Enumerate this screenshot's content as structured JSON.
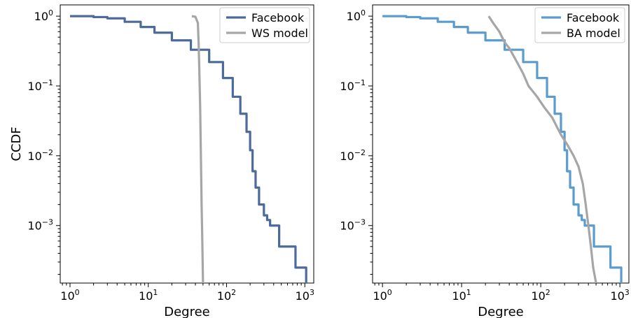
{
  "chart_data": [
    {
      "type": "line",
      "xscale": "log",
      "yscale": "log",
      "xlabel": "Degree",
      "ylabel": "CCDF",
      "xlim": [
        0.75,
        1300
      ],
      "ylim": [
        0.00015,
        1.45
      ],
      "xticks": [
        {
          "base": "10",
          "exp": "0",
          "value": 1
        },
        {
          "base": "10",
          "exp": "1",
          "value": 10
        },
        {
          "base": "10",
          "exp": "2",
          "value": 100
        },
        {
          "base": "10",
          "exp": "3",
          "value": 1000
        }
      ],
      "yticks": [
        {
          "base": "10",
          "exp": "0",
          "value": 1
        },
        {
          "base": "10",
          "exp": "−1",
          "value": 0.1
        },
        {
          "base": "10",
          "exp": "−2",
          "value": 0.01
        },
        {
          "base": "10",
          "exp": "−3",
          "value": 0.001
        }
      ],
      "legend_position": "top-right",
      "grid": false,
      "series": [
        {
          "name": "Facebook",
          "color": "#4c6a9b",
          "step": true,
          "points": [
            [
              1,
              1.0
            ],
            [
              2,
              0.97
            ],
            [
              3,
              0.93
            ],
            [
              5,
              0.83
            ],
            [
              8,
              0.7
            ],
            [
              12,
              0.58
            ],
            [
              20,
              0.45
            ],
            [
              35,
              0.33
            ],
            [
              60,
              0.22
            ],
            [
              90,
              0.13
            ],
            [
              120,
              0.07
            ],
            [
              150,
              0.04
            ],
            [
              180,
              0.022
            ],
            [
              200,
              0.012
            ],
            [
              215,
              0.006
            ],
            [
              235,
              0.0035
            ],
            [
              260,
              0.002
            ],
            [
              300,
              0.0014
            ],
            [
              330,
              0.0012
            ],
            [
              360,
              0.001
            ],
            [
              460,
              0.001
            ],
            [
              470,
              0.0005
            ],
            [
              740,
              0.0005
            ],
            [
              760,
              0.00025
            ],
            [
              1040,
              0.00025
            ],
            [
              1040,
              0.00015
            ]
          ]
        },
        {
          "name": "WS model",
          "color": "#a6a6a6",
          "step": false,
          "points": [
            [
              36,
              1.0
            ],
            [
              40,
              0.98
            ],
            [
              43,
              0.8
            ],
            [
              44,
              0.4
            ],
            [
              45,
              0.15
            ],
            [
              46,
              0.05
            ],
            [
              47,
              0.01
            ],
            [
              48,
              0.002
            ],
            [
              49,
              0.0006
            ],
            [
              50,
              0.00015
            ]
          ]
        }
      ]
    },
    {
      "type": "line",
      "xscale": "log",
      "yscale": "log",
      "xlabel": "Degree",
      "ylabel": "",
      "xlim": [
        0.75,
        1300
      ],
      "ylim": [
        0.00015,
        1.45
      ],
      "xticks": [
        {
          "base": "10",
          "exp": "0",
          "value": 1
        },
        {
          "base": "10",
          "exp": "1",
          "value": 10
        },
        {
          "base": "10",
          "exp": "2",
          "value": 100
        },
        {
          "base": "10",
          "exp": "3",
          "value": 1000
        }
      ],
      "yticks": [
        {
          "base": "10",
          "exp": "0",
          "value": 1
        },
        {
          "base": "10",
          "exp": "−1",
          "value": 0.1
        },
        {
          "base": "10",
          "exp": "−2",
          "value": 0.01
        },
        {
          "base": "10",
          "exp": "−3",
          "value": 0.001
        }
      ],
      "legend_position": "top-right",
      "grid": false,
      "series": [
        {
          "name": "Facebook",
          "color": "#5b9ccf",
          "step": true,
          "points": [
            [
              1,
              1.0
            ],
            [
              2,
              0.97
            ],
            [
              3,
              0.93
            ],
            [
              5,
              0.83
            ],
            [
              8,
              0.7
            ],
            [
              12,
              0.58
            ],
            [
              20,
              0.45
            ],
            [
              35,
              0.33
            ],
            [
              60,
              0.22
            ],
            [
              90,
              0.13
            ],
            [
              120,
              0.07
            ],
            [
              150,
              0.04
            ],
            [
              180,
              0.022
            ],
            [
              200,
              0.012
            ],
            [
              215,
              0.006
            ],
            [
              235,
              0.0035
            ],
            [
              260,
              0.002
            ],
            [
              300,
              0.0014
            ],
            [
              330,
              0.0012
            ],
            [
              360,
              0.001
            ],
            [
              460,
              0.001
            ],
            [
              470,
              0.0005
            ],
            [
              740,
              0.0005
            ],
            [
              760,
              0.00025
            ],
            [
              1040,
              0.00025
            ],
            [
              1040,
              0.00015
            ]
          ]
        },
        {
          "name": "BA model",
          "color": "#a6a6a6",
          "step": false,
          "points": [
            [
              22,
              1.0
            ],
            [
              25,
              0.8
            ],
            [
              30,
              0.6
            ],
            [
              35,
              0.42
            ],
            [
              40,
              0.35
            ],
            [
              50,
              0.22
            ],
            [
              60,
              0.15
            ],
            [
              70,
              0.1
            ],
            [
              90,
              0.07
            ],
            [
              110,
              0.05
            ],
            [
              140,
              0.035
            ],
            [
              180,
              0.02
            ],
            [
              220,
              0.014
            ],
            [
              260,
              0.01
            ],
            [
              300,
              0.007
            ],
            [
              340,
              0.004
            ],
            [
              370,
              0.002
            ],
            [
              400,
              0.001
            ],
            [
              430,
              0.0005
            ],
            [
              460,
              0.00025
            ],
            [
              500,
              0.00015
            ]
          ]
        }
      ]
    }
  ]
}
